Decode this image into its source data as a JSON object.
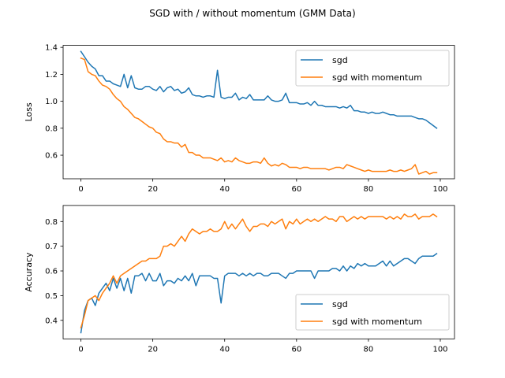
{
  "chart_data": [
    {
      "type": "line",
      "title": "SGD with / without momentum (GMM Data)",
      "xlabel": "",
      "ylabel": "Loss",
      "xlim": [
        -4.95,
        103.95
      ],
      "ylim": [
        0.425,
        1.415
      ],
      "xticks": [
        0,
        20,
        40,
        60,
        80,
        100
      ],
      "yticks": [
        0.6,
        0.8,
        1.0,
        1.2,
        1.4
      ],
      "ytick_labels": [
        "0.6",
        "0.8",
        "1.0",
        "1.2",
        "1.4"
      ],
      "legend_loc": "upper right",
      "series": [
        {
          "name": "sgd",
          "color": "#1f77b4",
          "x": [
            0,
            1,
            2,
            3,
            4,
            5,
            6,
            7,
            8,
            9,
            10,
            11,
            12,
            13,
            14,
            15,
            16,
            17,
            18,
            19,
            20,
            21,
            22,
            23,
            24,
            25,
            26,
            27,
            28,
            29,
            30,
            31,
            32,
            33,
            34,
            35,
            36,
            37,
            38,
            39,
            40,
            41,
            42,
            43,
            44,
            45,
            46,
            47,
            48,
            49,
            50,
            51,
            52,
            53,
            54,
            55,
            56,
            57,
            58,
            59,
            60,
            61,
            62,
            63,
            64,
            65,
            66,
            67,
            68,
            69,
            70,
            71,
            72,
            73,
            74,
            75,
            76,
            77,
            78,
            79,
            80,
            81,
            82,
            83,
            84,
            85,
            86,
            87,
            88,
            89,
            90,
            91,
            92,
            93,
            94,
            95,
            96,
            97,
            98,
            99
          ],
          "values": [
            1.37,
            1.33,
            1.29,
            1.26,
            1.24,
            1.19,
            1.19,
            1.15,
            1.15,
            1.13,
            1.12,
            1.11,
            1.2,
            1.1,
            1.19,
            1.1,
            1.09,
            1.09,
            1.11,
            1.11,
            1.09,
            1.08,
            1.11,
            1.07,
            1.1,
            1.11,
            1.08,
            1.09,
            1.06,
            1.07,
            1.1,
            1.05,
            1.04,
            1.04,
            1.03,
            1.04,
            1.04,
            1.03,
            1.23,
            1.03,
            1.02,
            1.03,
            1.03,
            1.06,
            1.01,
            1.03,
            1.02,
            1.05,
            1.01,
            1.01,
            1.01,
            1.01,
            1.04,
            1.01,
            1.0,
            1.0,
            1.01,
            1.06,
            0.99,
            0.99,
            0.99,
            0.98,
            0.98,
            0.99,
            0.97,
            1.0,
            0.97,
            0.97,
            0.96,
            0.96,
            0.96,
            0.96,
            0.95,
            0.96,
            0.95,
            0.97,
            0.93,
            0.93,
            0.92,
            0.92,
            0.91,
            0.92,
            0.91,
            0.91,
            0.92,
            0.91,
            0.9,
            0.9,
            0.89,
            0.89,
            0.89,
            0.89,
            0.89,
            0.88,
            0.87,
            0.87,
            0.86,
            0.84,
            0.82,
            0.8
          ]
        },
        {
          "name": "sgd with momentum",
          "color": "#ff7f0e",
          "x": [
            0,
            1,
            2,
            3,
            4,
            5,
            6,
            7,
            8,
            9,
            10,
            11,
            12,
            13,
            14,
            15,
            16,
            17,
            18,
            19,
            20,
            21,
            22,
            23,
            24,
            25,
            26,
            27,
            28,
            29,
            30,
            31,
            32,
            33,
            34,
            35,
            36,
            37,
            38,
            39,
            40,
            41,
            42,
            43,
            44,
            45,
            46,
            47,
            48,
            49,
            50,
            51,
            52,
            53,
            54,
            55,
            56,
            57,
            58,
            59,
            60,
            61,
            62,
            63,
            64,
            65,
            66,
            67,
            68,
            69,
            70,
            71,
            72,
            73,
            74,
            75,
            76,
            77,
            78,
            79,
            80,
            81,
            82,
            83,
            84,
            85,
            86,
            87,
            88,
            89,
            90,
            91,
            92,
            93,
            94,
            95,
            96,
            97,
            98,
            99
          ],
          "values": [
            1.32,
            1.31,
            1.22,
            1.2,
            1.19,
            1.15,
            1.12,
            1.11,
            1.09,
            1.05,
            1.02,
            1.0,
            0.96,
            0.94,
            0.91,
            0.88,
            0.87,
            0.85,
            0.83,
            0.81,
            0.8,
            0.77,
            0.76,
            0.72,
            0.7,
            0.7,
            0.69,
            0.69,
            0.66,
            0.68,
            0.62,
            0.62,
            0.6,
            0.6,
            0.58,
            0.58,
            0.58,
            0.57,
            0.56,
            0.58,
            0.55,
            0.56,
            0.55,
            0.58,
            0.56,
            0.55,
            0.54,
            0.54,
            0.55,
            0.55,
            0.54,
            0.58,
            0.54,
            0.52,
            0.53,
            0.52,
            0.54,
            0.53,
            0.51,
            0.51,
            0.51,
            0.5,
            0.51,
            0.51,
            0.5,
            0.5,
            0.5,
            0.5,
            0.5,
            0.49,
            0.5,
            0.51,
            0.51,
            0.5,
            0.53,
            0.52,
            0.51,
            0.5,
            0.49,
            0.48,
            0.49,
            0.48,
            0.48,
            0.48,
            0.48,
            0.48,
            0.49,
            0.48,
            0.48,
            0.49,
            0.48,
            0.49,
            0.5,
            0.53,
            0.46,
            0.47,
            0.48,
            0.46,
            0.47,
            0.47
          ]
        }
      ]
    },
    {
      "type": "line",
      "title": "",
      "xlabel": "",
      "ylabel": "Accuracy",
      "xlim": [
        -4.95,
        103.95
      ],
      "ylim": [
        0.325,
        0.865
      ],
      "xticks": [
        0,
        20,
        40,
        60,
        80,
        100
      ],
      "yticks": [
        0.4,
        0.5,
        0.6,
        0.7,
        0.8
      ],
      "ytick_labels": [
        "0.4",
        "0.5",
        "0.6",
        "0.7",
        "0.8"
      ],
      "legend_loc": "lower right",
      "series": [
        {
          "name": "sgd",
          "color": "#1f77b4",
          "x": [
            0,
            1,
            2,
            3,
            4,
            5,
            6,
            7,
            8,
            9,
            10,
            11,
            12,
            13,
            14,
            15,
            16,
            17,
            18,
            19,
            20,
            21,
            22,
            23,
            24,
            25,
            26,
            27,
            28,
            29,
            30,
            31,
            32,
            33,
            34,
            35,
            36,
            37,
            38,
            39,
            40,
            41,
            42,
            43,
            44,
            45,
            46,
            47,
            48,
            49,
            50,
            51,
            52,
            53,
            54,
            55,
            56,
            57,
            58,
            59,
            60,
            61,
            62,
            63,
            64,
            65,
            66,
            67,
            68,
            69,
            70,
            71,
            72,
            73,
            74,
            75,
            76,
            77,
            78,
            79,
            80,
            81,
            82,
            83,
            84,
            85,
            86,
            87,
            88,
            89,
            90,
            91,
            92,
            93,
            94,
            95,
            96,
            97,
            98,
            99
          ],
          "values": [
            0.35,
            0.44,
            0.48,
            0.49,
            0.46,
            0.51,
            0.53,
            0.55,
            0.52,
            0.57,
            0.53,
            0.57,
            0.52,
            0.57,
            0.51,
            0.58,
            0.58,
            0.59,
            0.56,
            0.59,
            0.56,
            0.56,
            0.59,
            0.54,
            0.56,
            0.56,
            0.55,
            0.57,
            0.56,
            0.58,
            0.56,
            0.59,
            0.54,
            0.58,
            0.58,
            0.58,
            0.58,
            0.57,
            0.57,
            0.47,
            0.58,
            0.59,
            0.59,
            0.59,
            0.58,
            0.59,
            0.58,
            0.59,
            0.58,
            0.59,
            0.59,
            0.58,
            0.58,
            0.59,
            0.59,
            0.59,
            0.58,
            0.57,
            0.59,
            0.59,
            0.6,
            0.6,
            0.6,
            0.6,
            0.6,
            0.57,
            0.6,
            0.6,
            0.6,
            0.6,
            0.61,
            0.61,
            0.6,
            0.62,
            0.6,
            0.62,
            0.61,
            0.63,
            0.62,
            0.63,
            0.62,
            0.62,
            0.62,
            0.63,
            0.64,
            0.62,
            0.64,
            0.62,
            0.63,
            0.64,
            0.65,
            0.65,
            0.64,
            0.63,
            0.65,
            0.66,
            0.66,
            0.66,
            0.66,
            0.67
          ]
        },
        {
          "name": "sgd with momentum",
          "color": "#ff7f0e",
          "x": [
            0,
            1,
            2,
            3,
            4,
            5,
            6,
            7,
            8,
            9,
            10,
            11,
            12,
            13,
            14,
            15,
            16,
            17,
            18,
            19,
            20,
            21,
            22,
            23,
            24,
            25,
            26,
            27,
            28,
            29,
            30,
            31,
            32,
            33,
            34,
            35,
            36,
            37,
            38,
            39,
            40,
            41,
            42,
            43,
            44,
            45,
            46,
            47,
            48,
            49,
            50,
            51,
            52,
            53,
            54,
            55,
            56,
            57,
            58,
            59,
            60,
            61,
            62,
            63,
            64,
            65,
            66,
            67,
            68,
            69,
            70,
            71,
            72,
            73,
            74,
            75,
            76,
            77,
            78,
            79,
            80,
            81,
            82,
            83,
            84,
            85,
            86,
            87,
            88,
            89,
            90,
            91,
            92,
            93,
            94,
            95,
            96,
            97,
            98,
            99
          ],
          "values": [
            0.37,
            0.42,
            0.48,
            0.49,
            0.5,
            0.48,
            0.51,
            0.53,
            0.55,
            0.58,
            0.55,
            0.58,
            0.59,
            0.6,
            0.61,
            0.62,
            0.63,
            0.64,
            0.64,
            0.65,
            0.65,
            0.65,
            0.66,
            0.7,
            0.7,
            0.71,
            0.7,
            0.72,
            0.74,
            0.72,
            0.75,
            0.77,
            0.76,
            0.75,
            0.76,
            0.76,
            0.77,
            0.76,
            0.76,
            0.77,
            0.8,
            0.77,
            0.79,
            0.77,
            0.79,
            0.81,
            0.78,
            0.76,
            0.78,
            0.78,
            0.79,
            0.79,
            0.78,
            0.8,
            0.79,
            0.8,
            0.81,
            0.77,
            0.8,
            0.79,
            0.81,
            0.79,
            0.8,
            0.81,
            0.8,
            0.81,
            0.8,
            0.81,
            0.82,
            0.81,
            0.81,
            0.8,
            0.82,
            0.82,
            0.8,
            0.81,
            0.82,
            0.81,
            0.82,
            0.81,
            0.82,
            0.82,
            0.82,
            0.82,
            0.82,
            0.81,
            0.82,
            0.81,
            0.82,
            0.81,
            0.83,
            0.82,
            0.82,
            0.83,
            0.81,
            0.82,
            0.82,
            0.82,
            0.83,
            0.82
          ]
        }
      ]
    }
  ]
}
